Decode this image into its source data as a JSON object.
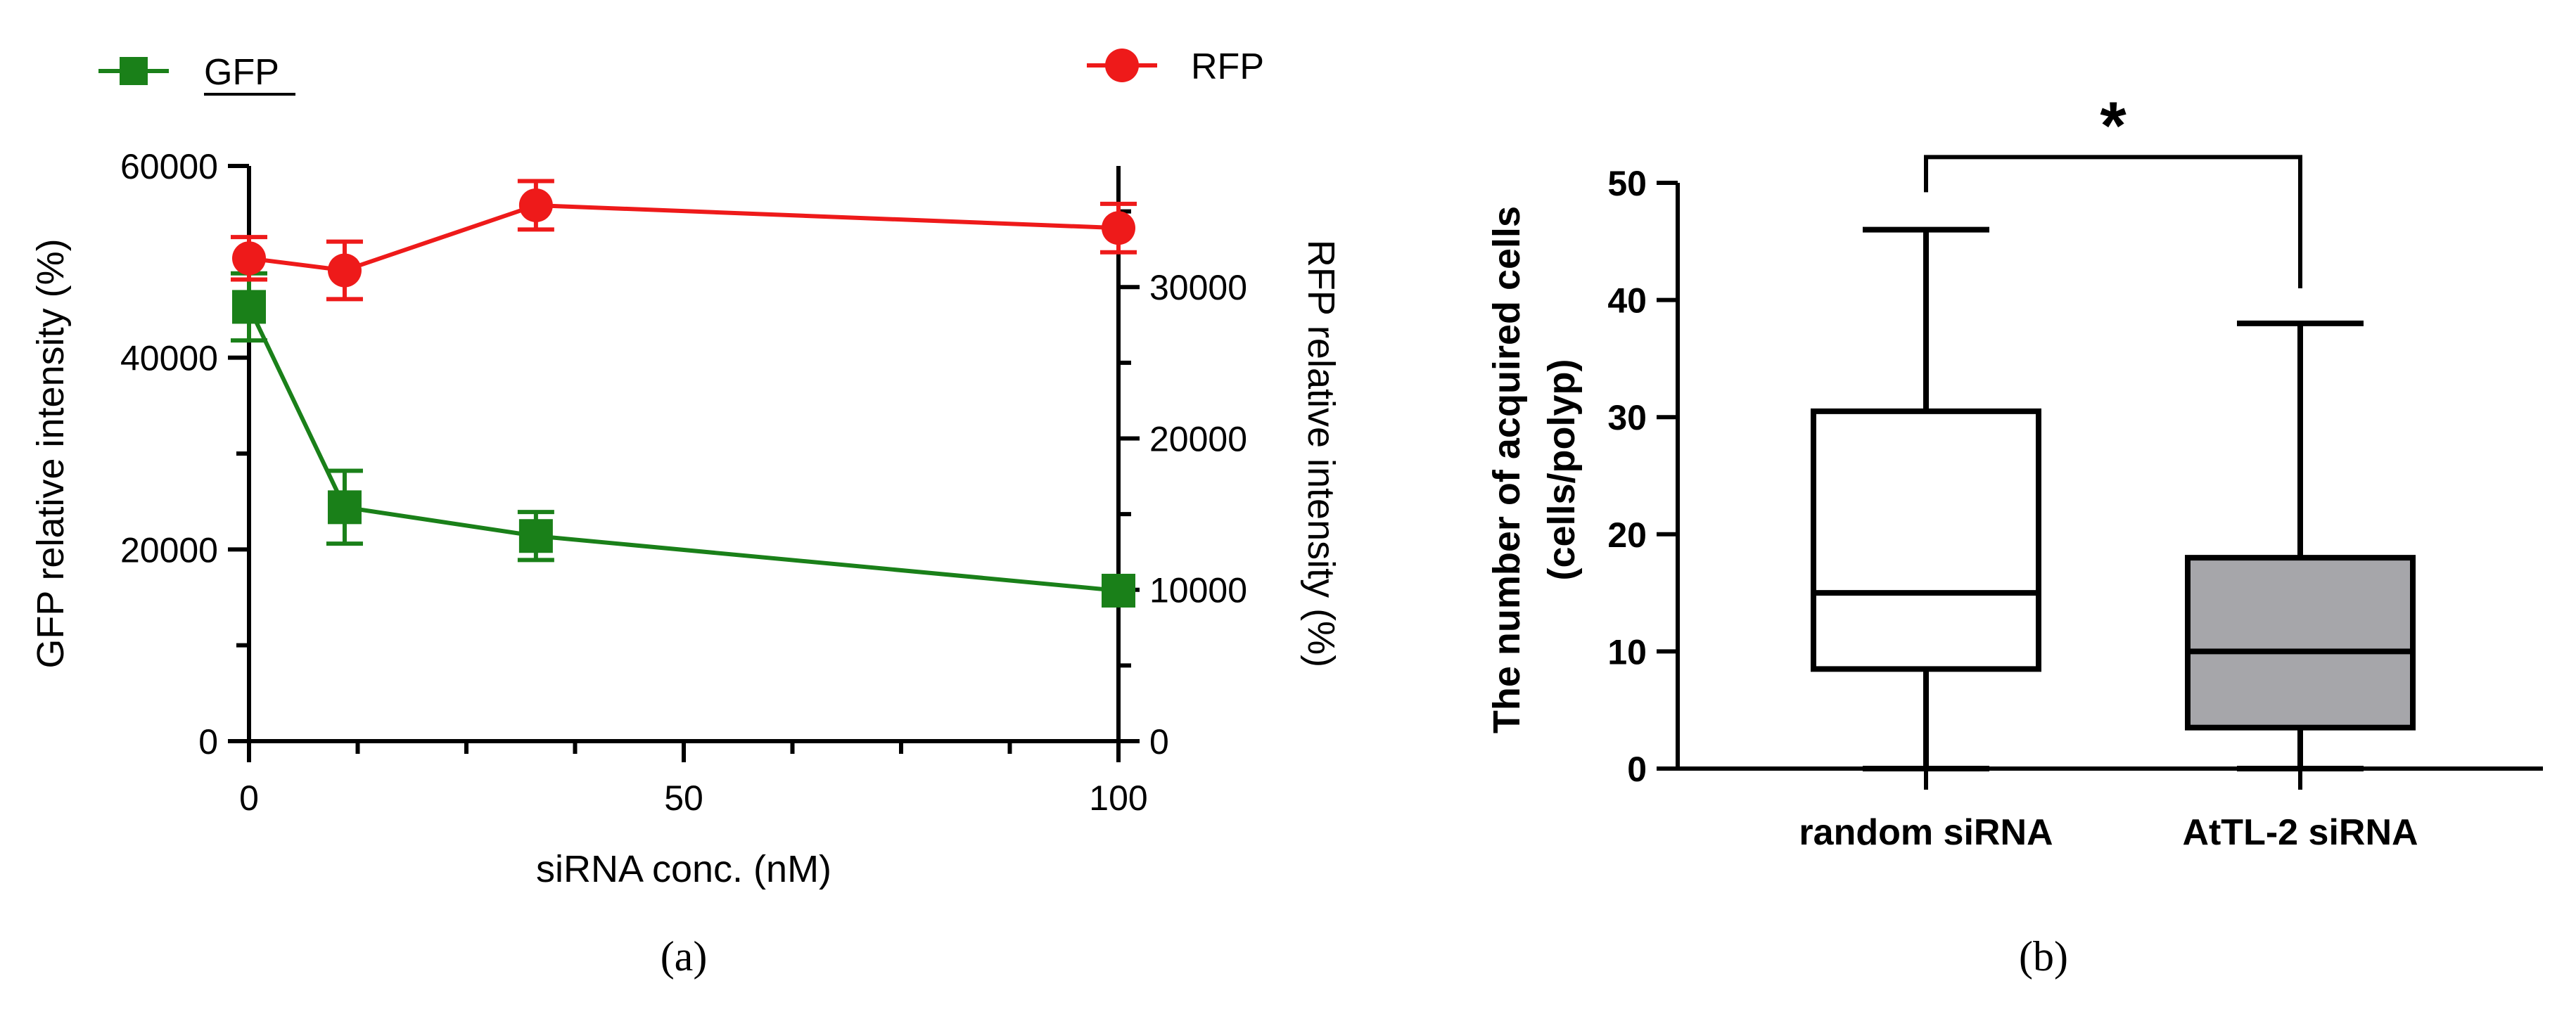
{
  "colors": {
    "gfp": "#1a8019",
    "rfp": "#ee1a1a",
    "axis": "#000000",
    "box_b": "#a6a6aa",
    "box_a": "#ffffff"
  },
  "chart_data": [
    {
      "type": "line",
      "panel_label": "(a)",
      "xlabel": "siRNA conc. (nM)",
      "ylabel": "GFP relative intensity  (%)",
      "y2label": "RFP relative intensity  (%)",
      "xlim": [
        0,
        100
      ],
      "ylim": [
        0,
        60000
      ],
      "y2lim": [
        0,
        38000
      ],
      "x_ticks": [
        0,
        50,
        100
      ],
      "x_tick_labels": [
        "0",
        "50",
        "100"
      ],
      "y_ticks": [
        0,
        20000,
        40000,
        60000
      ],
      "y_tick_labels": [
        "0",
        "20000",
        "40000",
        "60000"
      ],
      "y2_ticks": [
        0,
        10000,
        20000,
        30000
      ],
      "y2_tick_labels": [
        "0",
        "10000",
        "20000",
        "30000"
      ],
      "legend": [
        "GFP",
        "RFP"
      ],
      "legend_position": "top",
      "series": [
        {
          "name": "GFP",
          "axis": "left",
          "marker": "square",
          "x": [
            0,
            11,
            33,
            100
          ],
          "y": [
            45300,
            24400,
            21400,
            15700
          ],
          "err": [
            3500,
            3800,
            2500,
            0
          ]
        },
        {
          "name": "RFP",
          "axis": "right",
          "marker": "circle",
          "x": [
            0,
            11,
            33,
            100
          ],
          "y": [
            31900,
            31100,
            35400,
            33900
          ],
          "err": [
            1400,
            1900,
            1600,
            1600
          ]
        }
      ]
    },
    {
      "type": "box",
      "panel_label": "(b)",
      "ylabel_line1": "The number of acquired cells",
      "ylabel_line2": "(cells/polyp)",
      "ylim": [
        0,
        50
      ],
      "y_ticks": [
        0,
        10,
        20,
        30,
        40,
        50
      ],
      "y_tick_labels": [
        "0",
        "10",
        "20",
        "30",
        "40",
        "50"
      ],
      "categories": [
        "random siRNA",
        "AtTL-2 siRNA"
      ],
      "boxes": [
        {
          "name": "random siRNA",
          "min": 0,
          "q1": 8.5,
          "median": 15,
          "q3": 30.5,
          "max": 46,
          "fill": "white"
        },
        {
          "name": "AtTL-2 siRNA",
          "min": 0,
          "q1": 3.5,
          "median": 10,
          "q3": 18,
          "max": 38,
          "fill": "gray"
        }
      ],
      "significance": "*"
    }
  ]
}
